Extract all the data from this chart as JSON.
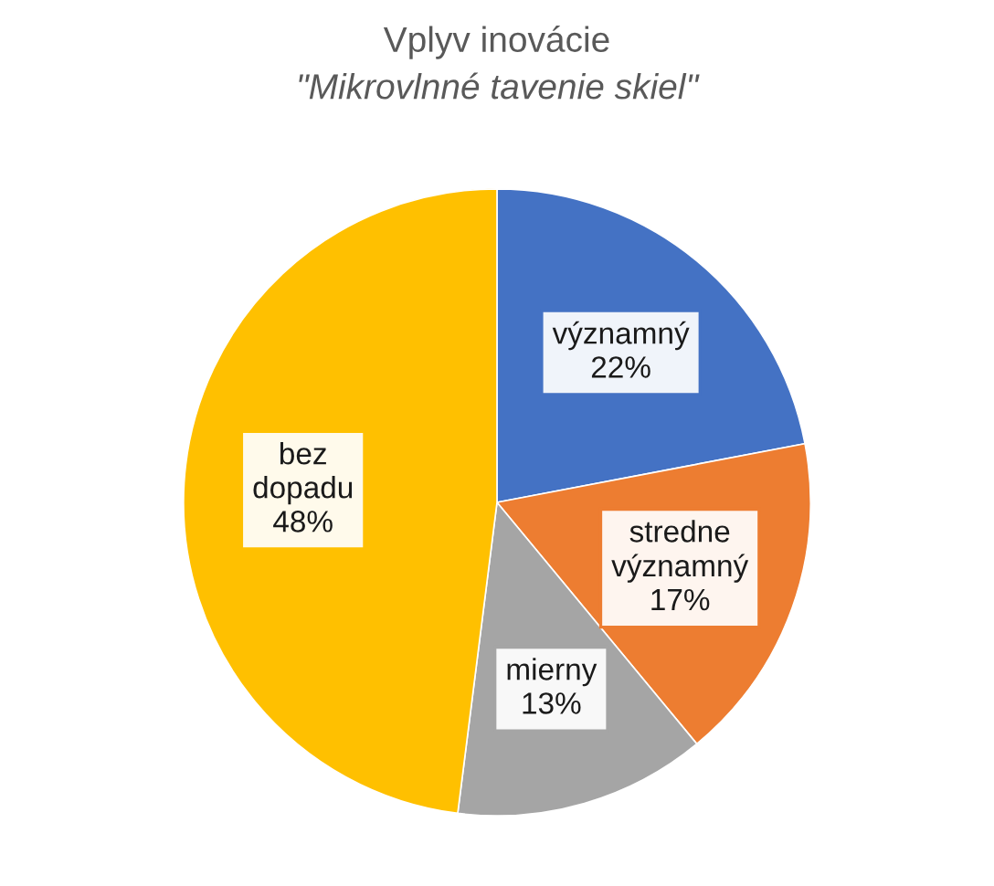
{
  "chart_data": {
    "type": "pie",
    "title": "Vplyv inovácie",
    "subtitle": "\"Mikrovlnné tavenie skiel\"",
    "categories": [
      "významný",
      "stredne významný",
      "mierny",
      "bez dopadu"
    ],
    "values": [
      22,
      17,
      13,
      48
    ],
    "value_labels": [
      "22%",
      "17%",
      "13%",
      "48%"
    ],
    "colors": [
      "#4472c4",
      "#ed7d31",
      "#a5a5a5",
      "#ffc000"
    ]
  }
}
